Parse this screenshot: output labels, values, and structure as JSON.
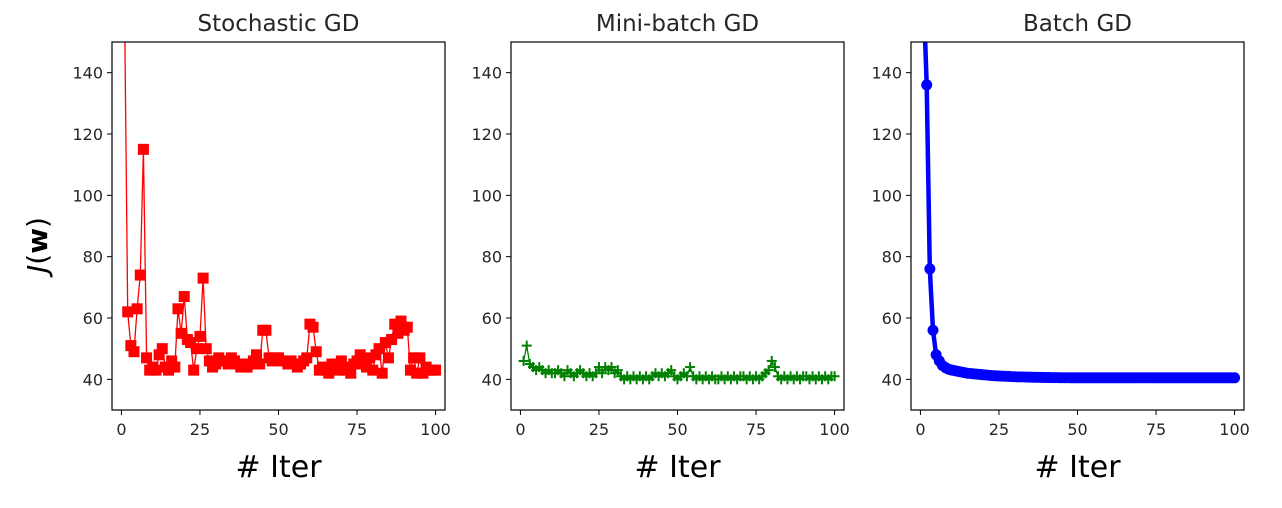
{
  "figure": {
    "ylabel_main": "J",
    "ylabel_paren_open": "(",
    "ylabel_w": "w",
    "ylabel_paren_close": ")"
  },
  "chart_data": [
    {
      "type": "line",
      "title": "Stochastic GD",
      "xlabel": "# Iter",
      "ylabel": "J(w)",
      "xlim": [
        -3,
        103
      ],
      "ylim": [
        30,
        150
      ],
      "xticks": [
        0,
        25,
        50,
        75,
        100
      ],
      "yticks": [
        40,
        60,
        80,
        100,
        120,
        140
      ],
      "color": "#ff0000",
      "marker": "square",
      "series": [
        {
          "x": [
            1,
            2,
            3,
            4,
            5,
            6,
            7,
            8,
            9,
            10,
            11,
            12,
            13,
            14,
            15,
            16,
            17,
            18,
            19,
            20,
            21,
            22,
            23,
            24,
            25,
            26,
            27,
            28,
            29,
            30,
            31,
            32,
            33,
            34,
            35,
            36,
            37,
            38,
            39,
            40,
            41,
            42,
            43,
            44,
            45,
            46,
            47,
            48,
            49,
            50,
            51,
            52,
            53,
            54,
            55,
            56,
            57,
            58,
            59,
            60,
            61,
            62,
            63,
            64,
            65,
            66,
            67,
            68,
            69,
            70,
            71,
            72,
            73,
            74,
            75,
            76,
            77,
            78,
            79,
            80,
            81,
            82,
            83,
            84,
            85,
            86,
            87,
            88,
            89,
            90,
            91,
            92,
            93,
            94,
            95,
            96,
            97,
            98,
            99,
            100
          ],
          "y": [
            160,
            62,
            51,
            49,
            63,
            74,
            115,
            47,
            43,
            44,
            43,
            48,
            50,
            44,
            43,
            46,
            44,
            63,
            55,
            67,
            53,
            52,
            43,
            50,
            54,
            73,
            50,
            46,
            44,
            45,
            47,
            46,
            46,
            45,
            47,
            46,
            45,
            44,
            45,
            44,
            45,
            46,
            48,
            45,
            56,
            56,
            47,
            46,
            47,
            47,
            46,
            46,
            45,
            46,
            45,
            44,
            45,
            46,
            47,
            58,
            57,
            49,
            43,
            44,
            43,
            42,
            45,
            44,
            43,
            46,
            43,
            44,
            42,
            45,
            46,
            48,
            45,
            44,
            47,
            43,
            48,
            50,
            42,
            52,
            47,
            53,
            58,
            55,
            59,
            56,
            57,
            43,
            47,
            42,
            47,
            42,
            44,
            43,
            43,
            43
          ]
        }
      ]
    },
    {
      "type": "line",
      "title": "Mini-batch GD",
      "xlabel": "# Iter",
      "xlim": [
        -3,
        103
      ],
      "ylim": [
        30,
        150
      ],
      "xticks": [
        0,
        25,
        50,
        75,
        100
      ],
      "yticks": [
        40,
        60,
        80,
        100,
        120,
        140
      ],
      "color": "#008000",
      "marker": "plus",
      "series": [
        {
          "x": [
            1,
            2,
            3,
            4,
            5,
            6,
            7,
            8,
            9,
            10,
            11,
            12,
            13,
            14,
            15,
            16,
            17,
            18,
            19,
            20,
            21,
            22,
            23,
            24,
            25,
            26,
            27,
            28,
            29,
            30,
            31,
            32,
            33,
            34,
            35,
            36,
            37,
            38,
            39,
            40,
            41,
            42,
            43,
            44,
            45,
            46,
            47,
            48,
            49,
            50,
            51,
            52,
            53,
            54,
            55,
            56,
            57,
            58,
            59,
            60,
            61,
            62,
            63,
            64,
            65,
            66,
            67,
            68,
            69,
            70,
            71,
            72,
            73,
            74,
            75,
            76,
            77,
            78,
            79,
            80,
            81,
            82,
            83,
            84,
            85,
            86,
            87,
            88,
            89,
            90,
            91,
            92,
            93,
            94,
            95,
            96,
            97,
            98,
            99,
            100
          ],
          "y": [
            46,
            51,
            45,
            44,
            43,
            44,
            43,
            42,
            43,
            42,
            42,
            43,
            42,
            41,
            43,
            42,
            41,
            42,
            43,
            42,
            41,
            42,
            41,
            42,
            44,
            42,
            44,
            43,
            44,
            42,
            43,
            41,
            40,
            41,
            40,
            41,
            40,
            41,
            40,
            41,
            40,
            41,
            42,
            41,
            42,
            41,
            42,
            43,
            41,
            40,
            41,
            42,
            41,
            44,
            41,
            40,
            41,
            40,
            41,
            40,
            41,
            40,
            40,
            41,
            40,
            41,
            40,
            41,
            40,
            41,
            41,
            40,
            41,
            40,
            41,
            40,
            41,
            42,
            43,
            46,
            44,
            41,
            40,
            41,
            40,
            41,
            40,
            41,
            40,
            41,
            41,
            40,
            41,
            40,
            41,
            40,
            41,
            40,
            41,
            41
          ]
        }
      ]
    },
    {
      "type": "line",
      "title": "Batch GD",
      "xlabel": "# Iter",
      "xlim": [
        -3,
        103
      ],
      "ylim": [
        30,
        150
      ],
      "xticks": [
        0,
        25,
        50,
        75,
        100
      ],
      "yticks": [
        40,
        60,
        80,
        100,
        120,
        140
      ],
      "color": "#0000ff",
      "marker": "circle",
      "series": [
        {
          "x": [
            1,
            2,
            3,
            4,
            5,
            6,
            7,
            8,
            9,
            10,
            11,
            12,
            13,
            14,
            15,
            16,
            17,
            18,
            19,
            20,
            21,
            22,
            23,
            24,
            25,
            26,
            27,
            28,
            29,
            30,
            31,
            32,
            33,
            34,
            35,
            36,
            37,
            38,
            39,
            40,
            41,
            42,
            43,
            44,
            45,
            46,
            47,
            48,
            49,
            50,
            51,
            52,
            53,
            54,
            55,
            56,
            57,
            58,
            59,
            60,
            61,
            62,
            63,
            64,
            65,
            66,
            67,
            68,
            69,
            70,
            71,
            72,
            73,
            74,
            75,
            76,
            77,
            78,
            79,
            80,
            81,
            82,
            83,
            84,
            85,
            86,
            87,
            88,
            89,
            90,
            91,
            92,
            93,
            94,
            95,
            96,
            97,
            98,
            99,
            100
          ],
          "y": [
            165,
            136,
            76,
            56,
            48,
            46,
            44.5,
            43.8,
            43.3,
            43,
            42.8,
            42.6,
            42.4,
            42.2,
            42.0,
            41.9,
            41.8,
            41.7,
            41.6,
            41.5,
            41.4,
            41.3,
            41.2,
            41.15,
            41.1,
            41.05,
            41.0,
            40.95,
            40.9,
            40.85,
            40.8,
            40.78,
            40.75,
            40.72,
            40.7,
            40.68,
            40.66,
            40.64,
            40.62,
            40.6,
            40.58,
            40.56,
            40.55,
            40.54,
            40.53,
            40.52,
            40.51,
            40.5,
            40.5,
            40.5,
            40.5,
            40.5,
            40.5,
            40.5,
            40.5,
            40.5,
            40.5,
            40.5,
            40.5,
            40.5,
            40.5,
            40.5,
            40.5,
            40.5,
            40.5,
            40.5,
            40.5,
            40.5,
            40.5,
            40.5,
            40.5,
            40.5,
            40.5,
            40.5,
            40.5,
            40.5,
            40.5,
            40.5,
            40.5,
            40.5,
            40.5,
            40.5,
            40.5,
            40.5,
            40.5,
            40.5,
            40.5,
            40.5,
            40.5,
            40.5,
            40.5,
            40.5,
            40.5,
            40.5,
            40.5,
            40.5,
            40.5,
            40.5,
            40.5,
            40.5
          ]
        }
      ]
    }
  ]
}
